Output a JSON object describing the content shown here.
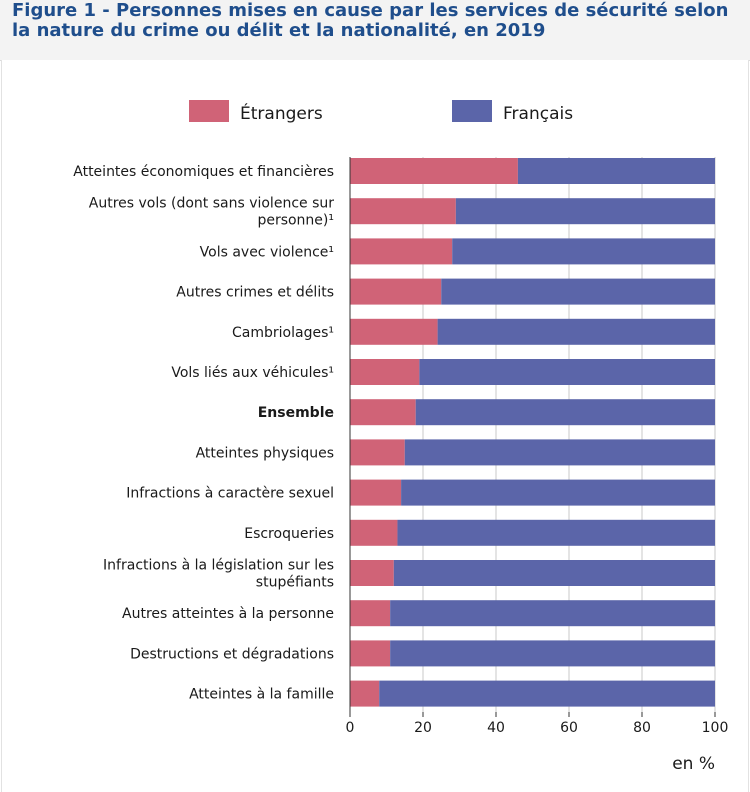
{
  "title": "Figure 1 - Personnes mises en cause par les services de sécurité selon la nature du crime ou délit et la nationalité, en 2019",
  "colors": {
    "etrangers": "#d06377",
    "francais": "#5b65a9",
    "grid": "#c8c8c8",
    "axis": "#333333"
  },
  "chart_data": {
    "type": "bar",
    "orientation": "horizontal",
    "stacked": true,
    "unit": "en %",
    "xlim": [
      0,
      100
    ],
    "xticks": [
      "0",
      "20",
      "40",
      "60",
      "80",
      "100"
    ],
    "grid": true,
    "legend_position": "top",
    "categories": [
      [
        "Atteintes économiques et financières"
      ],
      [
        "Autres vols (dont sans violence sur",
        "personne)¹"
      ],
      [
        "Vols avec violence¹"
      ],
      [
        "Autres crimes et délits"
      ],
      [
        "Cambriolages¹"
      ],
      [
        "Vols liés aux véhicules¹"
      ],
      [
        "Ensemble"
      ],
      [
        "Atteintes physiques"
      ],
      [
        "Infractions à caractère sexuel"
      ],
      [
        "Escroqueries"
      ],
      [
        "Infractions à la législation sur les",
        "stupéfiants"
      ],
      [
        "Autres atteintes à la personne"
      ],
      [
        "Destructions et dégradations"
      ],
      [
        "Atteintes à la famille"
      ]
    ],
    "bold_category": "Ensemble",
    "series": [
      {
        "name": "Étrangers",
        "values": [
          46,
          29,
          28,
          25,
          24,
          19,
          18,
          15,
          14,
          13,
          12,
          11,
          11,
          8
        ]
      },
      {
        "name": "Français",
        "values": [
          54,
          71,
          72,
          75,
          76,
          81,
          82,
          85,
          86,
          87,
          88,
          89,
          89,
          92
        ]
      }
    ]
  }
}
